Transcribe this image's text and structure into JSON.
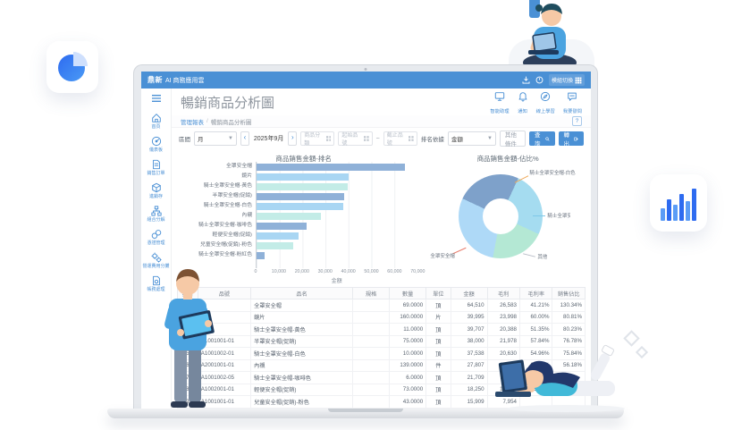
{
  "app": {
    "brand": "鼎新",
    "brand_suffix": "AI 商務應用雲",
    "topbar": {
      "module_switch": "模組切換"
    },
    "page_title": "暢銷商品分析圖",
    "breadcrumb": {
      "parent": "管理報表",
      "sep": "/",
      "current": "暢銷商品分析圖"
    },
    "help_badge": "?",
    "header_actions": [
      {
        "label": "智能助理",
        "icon": "monitor"
      },
      {
        "label": "通知",
        "icon": "bell"
      },
      {
        "label": "線上學習",
        "icon": "compass"
      },
      {
        "label": "我要發問",
        "icon": "chat"
      }
    ]
  },
  "sidebar": {
    "items": [
      {
        "label": "首頁",
        "icon": "home"
      },
      {
        "label": "儀表板",
        "icon": "gauge"
      },
      {
        "label": "銷售訂單",
        "icon": "doc"
      },
      {
        "label": "進銷存",
        "icon": "cube"
      },
      {
        "label": "組合分解",
        "icon": "org"
      },
      {
        "label": "憑證管理",
        "icon": "coins"
      },
      {
        "label": "營運費用分攤",
        "icon": "gears"
      },
      {
        "label": "帳務處理",
        "icon": "docgear"
      }
    ]
  },
  "filters": {
    "interval_label": "區間",
    "interval_value": "月",
    "prev": "‹",
    "next": "›",
    "period": "2025年9月",
    "inputs": [
      {
        "placeholder": "商品分類"
      },
      {
        "placeholder": "起始品號"
      },
      {
        "placeholder": "截止品號"
      }
    ],
    "tilde": "~",
    "rank_label": "排名依據",
    "rank_value": "金額",
    "more_button": "其他條件",
    "search_button": "查詢",
    "export_button": "轉出"
  },
  "chart_data": [
    {
      "type": "bar",
      "orientation": "horizontal",
      "title": "商品銷售金額-排名",
      "categories": [
        "全罩安全帽",
        "鏡片",
        "騎士全罩安全帽-黃色",
        "半罩安全帽(促銷)",
        "騎士全罩安全帽-白色",
        "內襯",
        "騎士全罩安全帽-咖啡色",
        "輕便安全帽(促銷)",
        "兒童安全帽(促銷)-粉色",
        "騎士全罩安全帽-粉紅色"
      ],
      "values": [
        64510,
        39995,
        39707,
        38000,
        37538,
        27807,
        21709,
        18250,
        15909,
        3500
      ],
      "xlabel": "金額",
      "xlim": [
        0,
        70000
      ],
      "xticks": [
        "0",
        "10,000",
        "20,000",
        "30,000",
        "40,000",
        "50,000",
        "60,000",
        "70,000"
      ],
      "bar_colors": [
        "#8fb1d8",
        "#a9d6f3",
        "#c3ece7"
      ],
      "grid": true
    },
    {
      "type": "pie",
      "title": "商品銷售金額-佔比%",
      "labels": [
        "騎士全罩安全帽-白色",
        "騎士全罩安全帽-黃色",
        "其他",
        "全罩安全帽"
      ],
      "values": [
        25,
        25,
        21,
        29
      ],
      "colors": [
        "#7ea1ca",
        "#a5dcf0",
        "#b4e8d4",
        "#aed9f7"
      ],
      "connector_colors": [
        "#f0a95a",
        "#7ec8e8",
        "#b9bec7",
        "#e87a6a"
      ],
      "start_angle_deg": -65,
      "legend_position": "none"
    }
  ],
  "table": {
    "headers": [
      "排名",
      "品號",
      "品名",
      "規格",
      "數量",
      "單位",
      "金額",
      "毛利",
      "毛利率",
      "銷售佔比"
    ],
    "rows": [
      [
        "1",
        "",
        "全罩安全帽",
        "",
        "69.0000",
        "頂",
        "64,510",
        "26,583",
        "41.21%",
        "130.34%"
      ],
      [
        "2",
        "",
        "鏡片",
        "",
        "160.0000",
        "片",
        "39,995",
        "23,998",
        "60.00%",
        "80.81%"
      ],
      [
        "3",
        "",
        "騎士全罩安全帽-黃色",
        "",
        "11.0000",
        "頂",
        "39,707",
        "20,388",
        "51.35%",
        "80.23%"
      ],
      [
        "4",
        "A1001001-01",
        "半罩安全帽(促銷)",
        "",
        "75.0000",
        "頂",
        "38,000",
        "21,978",
        "57.84%",
        "76.78%"
      ],
      [
        "5",
        "A1001002-01",
        "騎士全罩安全帽-白色",
        "",
        "10.0000",
        "頂",
        "37,538",
        "20,630",
        "54.96%",
        "75.84%"
      ],
      [
        "6",
        "A2001001-01",
        "內襯",
        "",
        "139.0000",
        "件",
        "27,807",
        "16,706",
        "60.08%",
        "56.18%"
      ],
      [
        "7",
        "A1001002-05",
        "騎士全罩安全帽-咖啡色",
        "",
        "6.0000",
        "頂",
        "21,709",
        "11,174",
        "51.47%",
        ""
      ],
      [
        "8",
        "A1002001-01",
        "輕便安全帽(促銷)",
        "",
        "73.0000",
        "頂",
        "18,250",
        "10,058",
        "55.11%",
        ""
      ],
      [
        "9",
        "A1001001-01",
        "兒童安全帽(促銷)-粉色",
        "",
        "43.0000",
        "頂",
        "15,909",
        "7,954",
        "",
        ""
      ]
    ]
  },
  "colors": {
    "accent": "#4a90d5",
    "topbar": "#4a90d5",
    "title_gray": "#8e959e",
    "decor_blue": "#2e6bf0"
  }
}
